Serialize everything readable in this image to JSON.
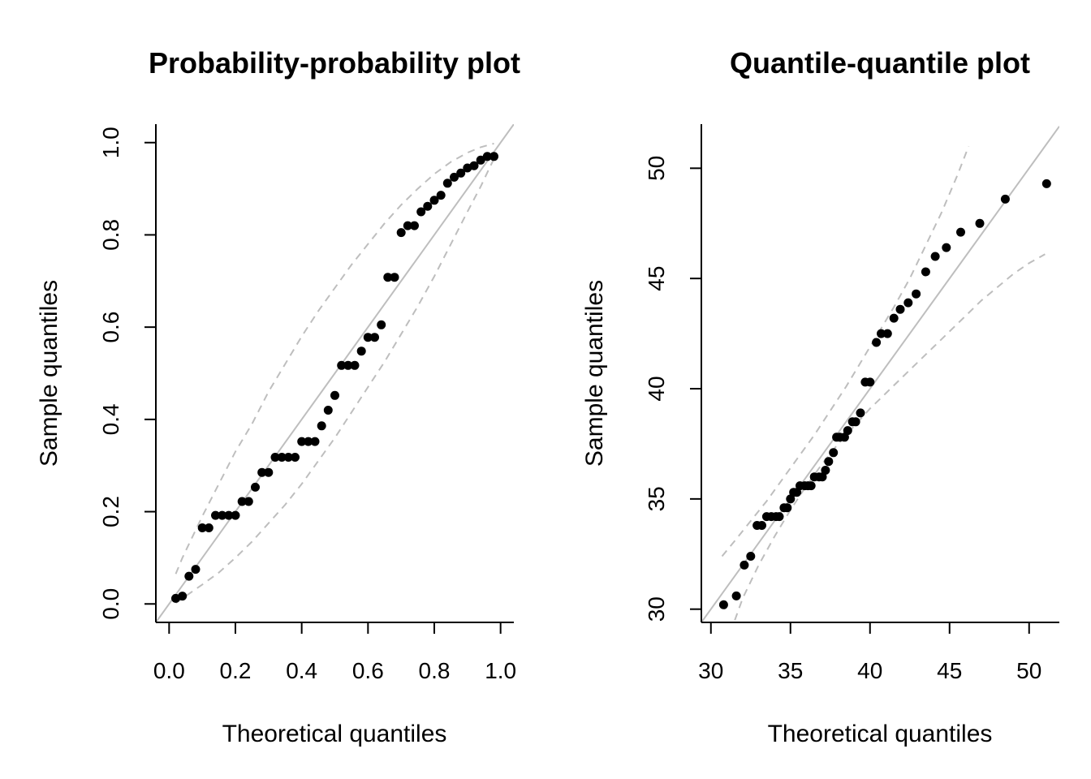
{
  "chart_data": [
    {
      "type": "scatter",
      "title": "Probability-probability plot",
      "xlabel": "Theoretical quantiles",
      "ylabel": "Sample quantiles",
      "xlim": [
        -0.04,
        1.04
      ],
      "ylim": [
        -0.04,
        1.04
      ],
      "xticks": [
        "0.0",
        "0.2",
        "0.4",
        "0.6",
        "0.8",
        "1.0"
      ],
      "yticks": [
        "0.0",
        "0.2",
        "0.4",
        "0.6",
        "0.8",
        "1.0"
      ],
      "grid": false,
      "reference_line": {
        "intercept": 0,
        "slope": 1,
        "color": "#bebebe"
      },
      "band_color": "#bebebe",
      "point_color": "#000000",
      "band_upper": {
        "x": [
          0.02,
          0.04,
          0.06,
          0.1,
          0.15,
          0.2,
          0.25,
          0.3,
          0.35,
          0.4,
          0.45,
          0.5,
          0.55,
          0.6,
          0.65,
          0.7,
          0.75,
          0.8,
          0.85,
          0.9,
          0.94,
          0.98
        ],
        "y": [
          0.065,
          0.1,
          0.13,
          0.19,
          0.26,
          0.33,
          0.39,
          0.46,
          0.52,
          0.58,
          0.635,
          0.685,
          0.735,
          0.78,
          0.825,
          0.865,
          0.9,
          0.932,
          0.958,
          0.978,
          0.99,
          0.998
        ]
      },
      "band_lower": {
        "x": [
          0.02,
          0.06,
          0.1,
          0.15,
          0.2,
          0.25,
          0.3,
          0.35,
          0.4,
          0.45,
          0.5,
          0.55,
          0.6,
          0.65,
          0.7,
          0.75,
          0.8,
          0.85,
          0.9,
          0.94,
          0.96,
          0.98
        ],
        "y": [
          0.002,
          0.022,
          0.042,
          0.068,
          0.1,
          0.135,
          0.175,
          0.215,
          0.26,
          0.31,
          0.36,
          0.415,
          0.47,
          0.525,
          0.585,
          0.645,
          0.71,
          0.78,
          0.85,
          0.905,
          0.935,
          0.965
        ]
      },
      "x": [
        0.02,
        0.04,
        0.06,
        0.08,
        0.1,
        0.12,
        0.14,
        0.16,
        0.18,
        0.2,
        0.22,
        0.24,
        0.26,
        0.28,
        0.3,
        0.32,
        0.34,
        0.36,
        0.38,
        0.4,
        0.42,
        0.44,
        0.46,
        0.48,
        0.5,
        0.52,
        0.54,
        0.56,
        0.58,
        0.6,
        0.62,
        0.64,
        0.66,
        0.68,
        0.7,
        0.72,
        0.74,
        0.76,
        0.78,
        0.8,
        0.82,
        0.84,
        0.86,
        0.88,
        0.9,
        0.92,
        0.94,
        0.96,
        0.98
      ],
      "y": [
        0.012,
        0.017,
        0.06,
        0.075,
        0.165,
        0.165,
        0.192,
        0.192,
        0.192,
        0.192,
        0.222,
        0.222,
        0.253,
        0.285,
        0.285,
        0.318,
        0.318,
        0.318,
        0.318,
        0.352,
        0.352,
        0.352,
        0.386,
        0.42,
        0.452,
        0.517,
        0.517,
        0.517,
        0.548,
        0.578,
        0.578,
        0.605,
        0.708,
        0.708,
        0.805,
        0.82,
        0.82,
        0.85,
        0.862,
        0.875,
        0.886,
        0.912,
        0.925,
        0.934,
        0.945,
        0.95,
        0.962,
        0.97,
        0.97
      ]
    },
    {
      "type": "scatter",
      "title": "Quantile-quantile plot",
      "xlabel": "Theoretical quantiles",
      "ylabel": "Sample quantiles",
      "xlim": [
        29.4,
        51.9
      ],
      "ylim": [
        29.4,
        52.0
      ],
      "xticks": [
        "30",
        "35",
        "40",
        "45",
        "50"
      ],
      "yticks": [
        "30",
        "35",
        "40",
        "45",
        "50"
      ],
      "grid": false,
      "reference_line": {
        "intercept": 0,
        "slope": 1,
        "color": "#bebebe"
      },
      "band_color": "#bebebe",
      "point_color": "#000000",
      "band_upper": {
        "x": [
          30.7,
          31.5,
          32.5,
          33.5,
          34.5,
          35.5,
          36.5,
          37.5,
          38.5,
          39.5,
          40.5,
          41.5,
          42.5,
          43.5,
          44.5,
          45.5,
          46.2
        ],
        "y": [
          32.4,
          33.1,
          34.0,
          34.9,
          35.9,
          36.9,
          37.9,
          39.0,
          40.1,
          41.3,
          42.5,
          43.7,
          45.0,
          46.5,
          48.0,
          49.7,
          51.0
        ]
      },
      "band_lower": {
        "x": [
          31.5,
          32.0,
          33.0,
          34.0,
          35.0,
          36.0,
          37.0,
          38.0,
          39.0,
          40.0,
          41.0,
          42.0,
          43.0,
          44.0,
          45.0,
          46.0,
          47.0,
          48.0,
          49.0,
          50.0,
          51.0
        ],
        "y": [
          29.5,
          30.5,
          32.0,
          33.3,
          34.5,
          35.6,
          36.6,
          37.5,
          38.3,
          39.1,
          39.8,
          40.5,
          41.2,
          41.9,
          42.6,
          43.3,
          44.0,
          44.6,
          45.2,
          45.7,
          46.1
        ]
      },
      "x": [
        30.8,
        31.6,
        32.1,
        32.5,
        32.9,
        33.2,
        33.5,
        33.8,
        34.1,
        34.3,
        34.6,
        34.8,
        35.0,
        35.2,
        35.4,
        35.6,
        35.9,
        36.1,
        36.3,
        36.5,
        36.8,
        37.0,
        37.2,
        37.4,
        37.7,
        37.9,
        38.1,
        38.4,
        38.6,
        38.9,
        39.1,
        39.4,
        39.7,
        40.0,
        40.4,
        40.7,
        41.1,
        41.5,
        41.9,
        42.4,
        42.9,
        43.5,
        44.1,
        44.8,
        45.7,
        46.9,
        48.5,
        51.1
      ],
      "y": [
        30.2,
        30.6,
        32.0,
        32.4,
        33.8,
        33.8,
        34.2,
        34.2,
        34.2,
        34.2,
        34.6,
        34.6,
        35.0,
        35.3,
        35.3,
        35.6,
        35.6,
        35.6,
        35.6,
        36.0,
        36.0,
        36.0,
        36.3,
        36.7,
        37.1,
        37.8,
        37.8,
        37.8,
        38.1,
        38.5,
        38.5,
        38.9,
        40.3,
        40.3,
        42.1,
        42.5,
        42.5,
        43.2,
        43.6,
        43.9,
        44.3,
        45.3,
        46.0,
        46.4,
        47.1,
        47.5,
        48.6,
        49.3
      ]
    }
  ]
}
